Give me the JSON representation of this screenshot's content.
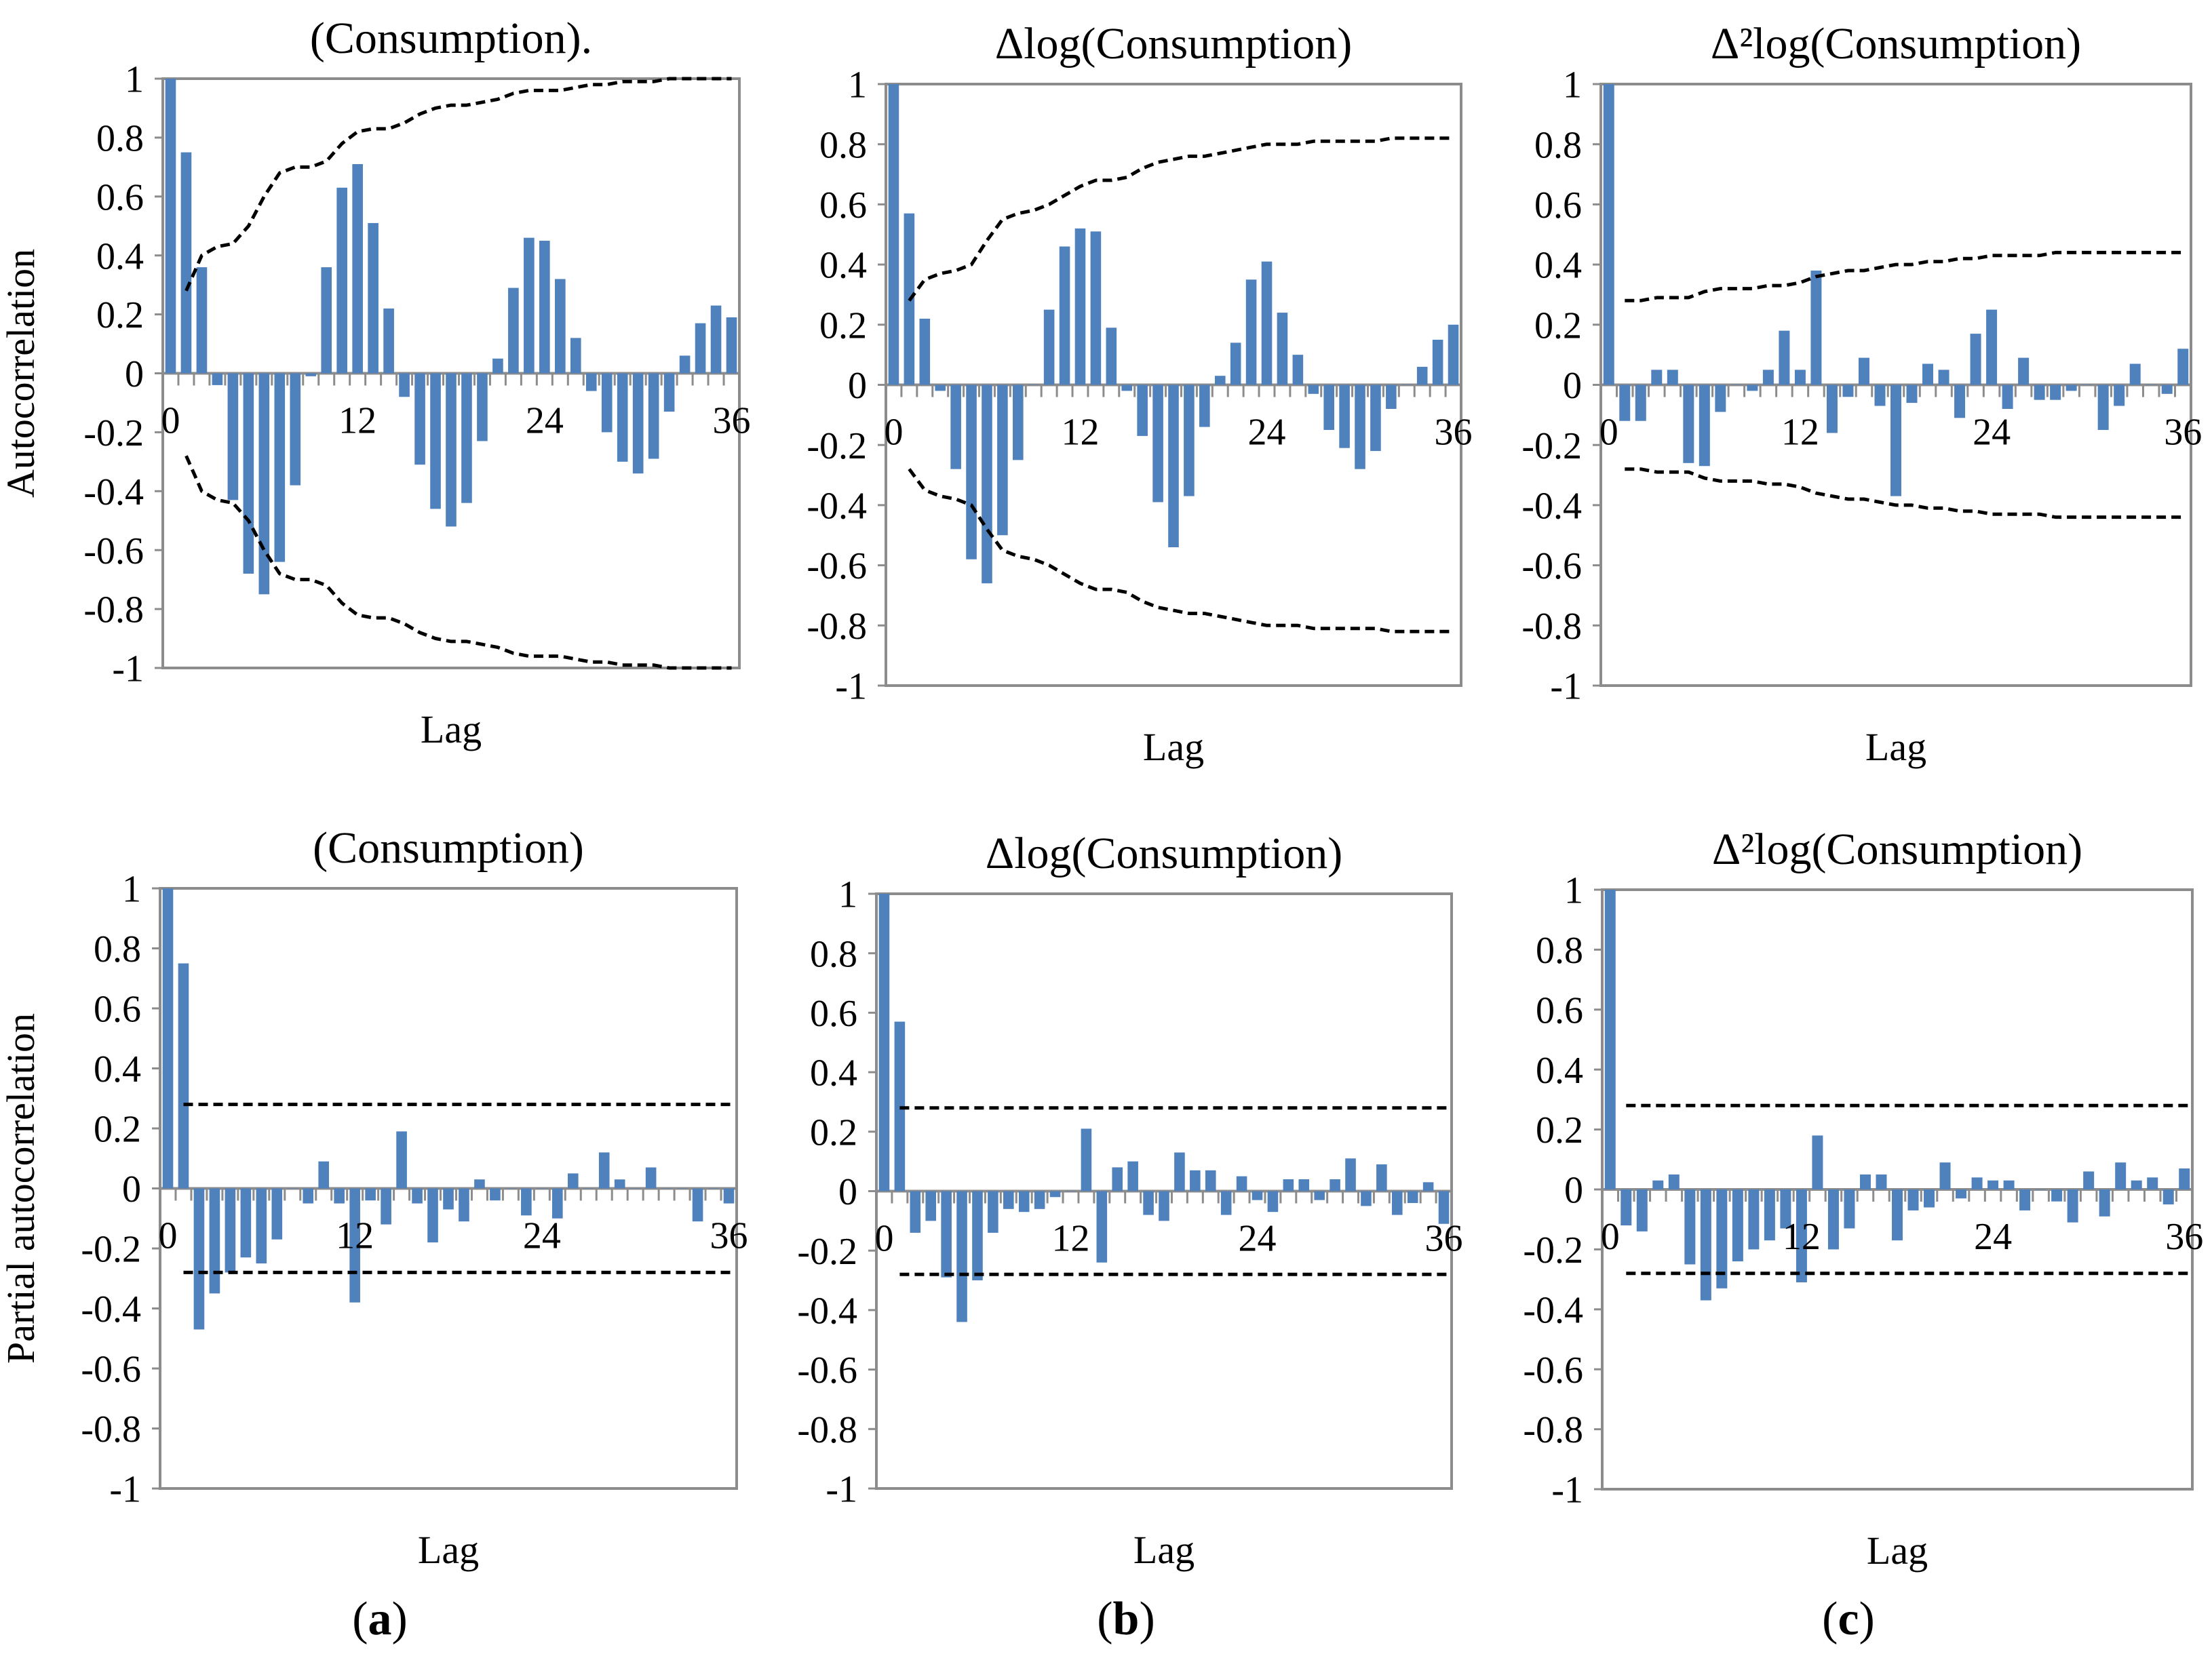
{
  "panel_letters": [
    "a",
    "b",
    "c"
  ],
  "colors": {
    "bar": "#4F81BD",
    "frame": "#8C8C8C",
    "bound": "#000000"
  },
  "chart_data": [
    {
      "type": "bar",
      "title": "(Consumption).",
      "xlabel": "Lag",
      "ylabel": "Autocorrelation",
      "ylim": [
        -1,
        1
      ],
      "y_ticks": [
        "1",
        "0.8",
        "0.6",
        "0.4",
        "0.2",
        "0",
        "-0.2",
        "-0.4",
        "-0.6",
        "-0.8",
        "-1"
      ],
      "x_ticks": [
        "0",
        "12",
        "24",
        "36"
      ],
      "x_tick_lags": [
        0,
        12,
        24,
        36
      ],
      "lags": [
        0,
        1,
        2,
        3,
        4,
        5,
        6,
        7,
        8,
        9,
        10,
        11,
        12,
        13,
        14,
        15,
        16,
        17,
        18,
        19,
        20,
        21,
        22,
        23,
        24,
        25,
        26,
        27,
        28,
        29,
        30,
        31,
        32,
        33,
        34,
        35,
        36
      ],
      "values": [
        1.0,
        0.75,
        0.36,
        -0.04,
        -0.43,
        -0.68,
        -0.75,
        -0.64,
        -0.38,
        -0.01,
        0.36,
        0.63,
        0.71,
        0.51,
        0.22,
        -0.08,
        -0.31,
        -0.46,
        -0.52,
        -0.44,
        -0.23,
        0.05,
        0.29,
        0.46,
        0.45,
        0.32,
        0.12,
        -0.06,
        -0.2,
        -0.3,
        -0.34,
        -0.29,
        -0.13,
        0.06,
        0.17,
        0.23,
        0.19
      ],
      "bound_lags": [
        1,
        2,
        3,
        4,
        5,
        6,
        7,
        8,
        9,
        10,
        11,
        12,
        13,
        14,
        15,
        16,
        17,
        18,
        19,
        20,
        21,
        22,
        23,
        24,
        25,
        26,
        27,
        28,
        29,
        30,
        31,
        32,
        33,
        34,
        35,
        36
      ],
      "bound": [
        0.28,
        0.4,
        0.43,
        0.44,
        0.5,
        0.6,
        0.68,
        0.7,
        0.7,
        0.72,
        0.78,
        0.82,
        0.83,
        0.83,
        0.85,
        0.88,
        0.9,
        0.91,
        0.91,
        0.92,
        0.93,
        0.95,
        0.96,
        0.96,
        0.96,
        0.97,
        0.98,
        0.98,
        0.99,
        0.99,
        0.99,
        1.0,
        1.0,
        1.0,
        1.0,
        1.0
      ],
      "bound_style": "curve"
    },
    {
      "type": "bar",
      "title": "Δlog(Consumption)",
      "xlabel": "Lag",
      "ylabel": "",
      "ylim": [
        -1,
        1
      ],
      "y_ticks": [
        "1",
        "0.8",
        "0.6",
        "0.4",
        "0.2",
        "0",
        "-0.2",
        "-0.4",
        "-0.6",
        "-0.8",
        "-1"
      ],
      "x_ticks": [
        "0",
        "12",
        "24",
        "36"
      ],
      "x_tick_lags": [
        0,
        12,
        24,
        36
      ],
      "lags": [
        0,
        1,
        2,
        3,
        4,
        5,
        6,
        7,
        8,
        9,
        10,
        11,
        12,
        13,
        14,
        15,
        16,
        17,
        18,
        19,
        20,
        21,
        22,
        23,
        24,
        25,
        26,
        27,
        28,
        29,
        30,
        31,
        32,
        33,
        34,
        35,
        36
      ],
      "values": [
        1.0,
        0.57,
        0.22,
        -0.02,
        -0.28,
        -0.58,
        -0.66,
        -0.5,
        -0.25,
        0.0,
        0.25,
        0.46,
        0.52,
        0.51,
        0.19,
        -0.02,
        -0.17,
        -0.39,
        -0.54,
        -0.37,
        -0.14,
        0.03,
        0.14,
        0.35,
        0.41,
        0.24,
        0.1,
        -0.03,
        -0.15,
        -0.21,
        -0.28,
        -0.22,
        -0.08,
        0.0,
        0.06,
        0.15,
        0.2
      ],
      "bound_lags": [
        1,
        2,
        3,
        4,
        5,
        6,
        7,
        8,
        9,
        10,
        11,
        12,
        13,
        14,
        15,
        16,
        17,
        18,
        19,
        20,
        21,
        22,
        23,
        24,
        25,
        26,
        27,
        28,
        29,
        30,
        31,
        32,
        33,
        34,
        35,
        36
      ],
      "bound": [
        0.28,
        0.35,
        0.37,
        0.38,
        0.4,
        0.48,
        0.55,
        0.57,
        0.58,
        0.6,
        0.63,
        0.66,
        0.68,
        0.68,
        0.69,
        0.72,
        0.74,
        0.75,
        0.76,
        0.76,
        0.77,
        0.78,
        0.79,
        0.8,
        0.8,
        0.8,
        0.81,
        0.81,
        0.81,
        0.81,
        0.81,
        0.82,
        0.82,
        0.82,
        0.82,
        0.82
      ],
      "bound_style": "curve"
    },
    {
      "type": "bar",
      "title": "Δ²log(Consumption)",
      "xlabel": "Lag",
      "ylabel": "",
      "ylim": [
        -1,
        1
      ],
      "y_ticks": [
        "1",
        "0.8",
        "0.6",
        "0.4",
        "0.2",
        "0",
        "-0.2",
        "-0.4",
        "-0.6",
        "-0.8",
        "-1"
      ],
      "x_ticks": [
        "0",
        "12",
        "24",
        "36"
      ],
      "x_tick_lags": [
        0,
        12,
        24,
        36
      ],
      "lags": [
        0,
        1,
        2,
        3,
        4,
        5,
        6,
        7,
        8,
        9,
        10,
        11,
        12,
        13,
        14,
        15,
        16,
        17,
        18,
        19,
        20,
        21,
        22,
        23,
        24,
        25,
        26,
        27,
        28,
        29,
        30,
        31,
        32,
        33,
        34,
        35,
        36
      ],
      "values": [
        1.0,
        -0.12,
        -0.12,
        0.05,
        0.05,
        -0.26,
        -0.27,
        -0.09,
        0.0,
        -0.02,
        0.05,
        0.18,
        0.05,
        0.38,
        -0.16,
        -0.04,
        0.09,
        -0.07,
        -0.37,
        -0.06,
        0.07,
        0.05,
        -0.11,
        0.17,
        0.25,
        -0.08,
        0.09,
        -0.05,
        -0.05,
        -0.02,
        0.0,
        -0.15,
        -0.07,
        0.07,
        0.0,
        -0.03,
        0.12
      ],
      "bound_lags": [
        1,
        2,
        3,
        4,
        5,
        6,
        7,
        8,
        9,
        10,
        11,
        12,
        13,
        14,
        15,
        16,
        17,
        18,
        19,
        20,
        21,
        22,
        23,
        24,
        25,
        26,
        27,
        28,
        29,
        30,
        31,
        32,
        33,
        34,
        35,
        36
      ],
      "bound": [
        0.28,
        0.28,
        0.29,
        0.29,
        0.29,
        0.31,
        0.32,
        0.32,
        0.32,
        0.33,
        0.33,
        0.34,
        0.36,
        0.37,
        0.38,
        0.38,
        0.39,
        0.4,
        0.4,
        0.41,
        0.41,
        0.42,
        0.42,
        0.43,
        0.43,
        0.43,
        0.43,
        0.44,
        0.44,
        0.44,
        0.44,
        0.44,
        0.44,
        0.44,
        0.44,
        0.44
      ],
      "bound_style": "curve"
    },
    {
      "type": "bar",
      "title": "(Consumption)",
      "xlabel": "Lag",
      "ylabel": "Partial autocorrelation",
      "ylim": [
        -1,
        1
      ],
      "y_ticks": [
        "1",
        "0.8",
        "0.6",
        "0.4",
        "0.2",
        "0",
        "-0.2",
        "-0.4",
        "-0.6",
        "-0.8",
        "-1"
      ],
      "x_ticks": [
        "0",
        "12",
        "24",
        "36"
      ],
      "x_tick_lags": [
        0,
        12,
        24,
        36
      ],
      "lags": [
        0,
        1,
        2,
        3,
        4,
        5,
        6,
        7,
        8,
        9,
        10,
        11,
        12,
        13,
        14,
        15,
        16,
        17,
        18,
        19,
        20,
        21,
        22,
        23,
        24,
        25,
        26,
        27,
        28,
        29,
        30,
        31,
        32,
        33,
        34,
        35,
        36
      ],
      "values": [
        1.0,
        0.75,
        -0.47,
        -0.35,
        -0.28,
        -0.23,
        -0.25,
        -0.17,
        0.0,
        -0.05,
        0.09,
        -0.05,
        -0.38,
        -0.04,
        -0.12,
        0.19,
        -0.05,
        -0.18,
        -0.07,
        -0.11,
        0.03,
        -0.04,
        0.0,
        -0.09,
        0.0,
        -0.1,
        0.05,
        0.0,
        0.12,
        0.03,
        0.0,
        0.07,
        0.0,
        0.0,
        -0.11,
        0.0,
        -0.05
      ],
      "bound_lags": [
        1,
        36
      ],
      "bound": [
        0.28,
        0.28
      ],
      "bound_style": "flat"
    },
    {
      "type": "bar",
      "title": "Δlog(Consumption)",
      "xlabel": "Lag",
      "ylabel": "",
      "ylim": [
        -1,
        1
      ],
      "y_ticks": [
        "1",
        "0.8",
        "0.6",
        "0.4",
        "0.2",
        "0",
        "-0.2",
        "-0.4",
        "-0.6",
        "-0.8",
        "-1"
      ],
      "x_ticks": [
        "0",
        "12",
        "24",
        "36"
      ],
      "x_tick_lags": [
        0,
        12,
        24,
        36
      ],
      "lags": [
        0,
        1,
        2,
        3,
        4,
        5,
        6,
        7,
        8,
        9,
        10,
        11,
        12,
        13,
        14,
        15,
        16,
        17,
        18,
        19,
        20,
        21,
        22,
        23,
        24,
        25,
        26,
        27,
        28,
        29,
        30,
        31,
        32,
        33,
        34,
        35,
        36
      ],
      "values": [
        1.0,
        0.57,
        -0.14,
        -0.1,
        -0.29,
        -0.44,
        -0.3,
        -0.14,
        -0.06,
        -0.07,
        -0.06,
        -0.02,
        0.0,
        0.21,
        -0.24,
        0.08,
        0.1,
        -0.08,
        -0.1,
        0.13,
        0.07,
        0.07,
        -0.08,
        0.05,
        -0.03,
        -0.07,
        0.04,
        0.04,
        -0.03,
        0.04,
        0.11,
        -0.05,
        0.09,
        -0.08,
        -0.04,
        0.03,
        -0.11
      ],
      "bound_lags": [
        1,
        36
      ],
      "bound": [
        0.28,
        0.28
      ],
      "bound_style": "flat"
    },
    {
      "type": "bar",
      "title": "Δ²log(Consumption)",
      "xlabel": "Lag",
      "ylabel": "",
      "ylim": [
        -1,
        1
      ],
      "y_ticks": [
        "1",
        "0.8",
        "0.6",
        "0.4",
        "0.2",
        "0",
        "-0.2",
        "-0.4",
        "-0.6",
        "-0.8",
        "-1"
      ],
      "x_ticks": [
        "0",
        "12",
        "24",
        "36"
      ],
      "x_tick_lags": [
        0,
        12,
        24,
        36
      ],
      "lags": [
        0,
        1,
        2,
        3,
        4,
        5,
        6,
        7,
        8,
        9,
        10,
        11,
        12,
        13,
        14,
        15,
        16,
        17,
        18,
        19,
        20,
        21,
        22,
        23,
        24,
        25,
        26,
        27,
        28,
        29,
        30,
        31,
        32,
        33,
        34,
        35,
        36
      ],
      "values": [
        1.0,
        -0.12,
        -0.14,
        0.03,
        0.05,
        -0.25,
        -0.37,
        -0.33,
        -0.24,
        -0.2,
        -0.17,
        -0.13,
        -0.31,
        0.18,
        -0.2,
        -0.13,
        0.05,
        0.05,
        -0.17,
        -0.07,
        -0.06,
        0.09,
        -0.03,
        0.04,
        0.03,
        0.03,
        -0.07,
        0.0,
        -0.04,
        -0.11,
        0.06,
        -0.09,
        0.09,
        0.03,
        0.04,
        -0.05,
        0.07
      ],
      "bound_lags": [
        1,
        36
      ],
      "bound": [
        0.28,
        0.28
      ],
      "bound_style": "flat"
    }
  ]
}
